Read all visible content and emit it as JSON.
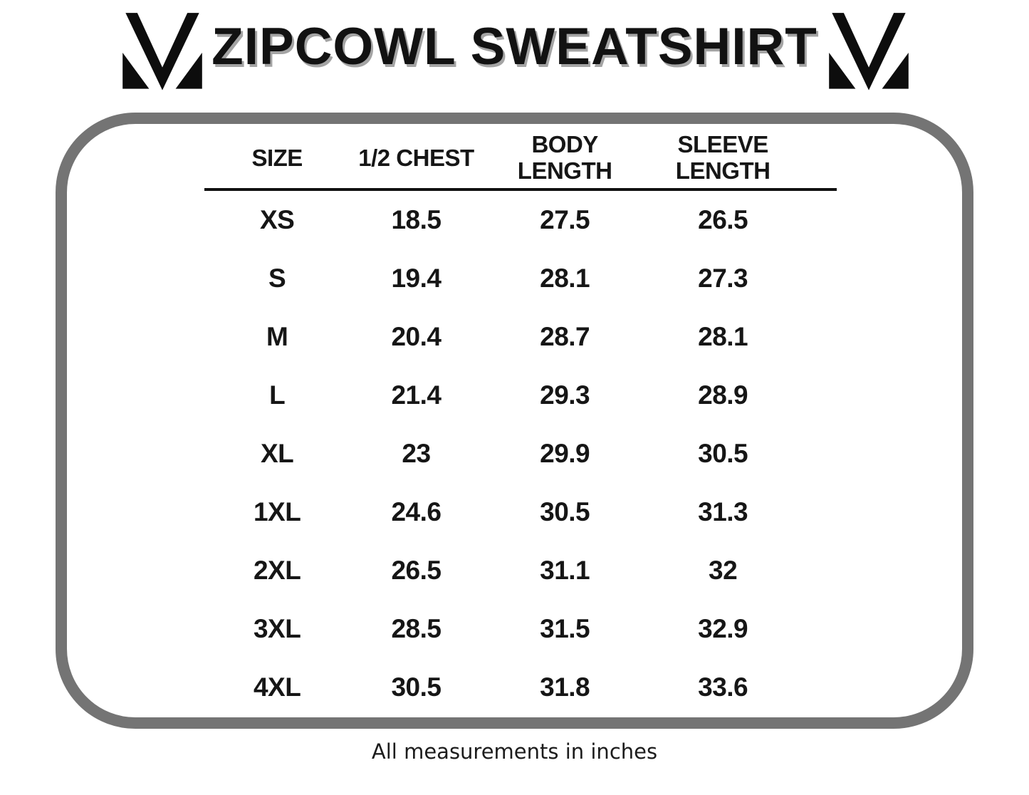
{
  "page": {
    "title": "ZIPCOWL SWEATSHIRT",
    "footer_note": "All measurements in inches"
  },
  "logos": {
    "left": "m-monogram-logo",
    "right": "m-monogram-logo"
  },
  "table": {
    "headers": [
      "SIZE",
      "1/2 CHEST",
      "BODY\nLENGTH",
      "SLEEVE\nLENGTH"
    ],
    "rows": [
      {
        "size": "XS",
        "values": [
          "18.5",
          "27.5",
          "26.5"
        ]
      },
      {
        "size": "S",
        "values": [
          "19.4",
          "28.1",
          "27.3"
        ]
      },
      {
        "size": "M",
        "values": [
          "20.4",
          "28.7",
          "28.1"
        ]
      },
      {
        "size": "L",
        "values": [
          "21.4",
          "29.3",
          "28.9"
        ]
      },
      {
        "size": "XL",
        "values": [
          "23",
          "29.9",
          "30.5"
        ]
      },
      {
        "size": "1XL",
        "values": [
          "24.6",
          "30.5",
          "31.3"
        ]
      },
      {
        "size": "2XL",
        "values": [
          "26.5",
          "31.1",
          "32"
        ]
      },
      {
        "size": "3XL",
        "values": [
          "28.5",
          "31.5",
          "32.9"
        ]
      },
      {
        "size": "4XL",
        "values": [
          "30.5",
          "31.8",
          "33.6"
        ]
      }
    ]
  },
  "colors": {
    "text": "#161616",
    "panel_border": "#747474",
    "title_shadow": "#a4a4a4",
    "divider": "#111111",
    "background": "#ffffff"
  },
  "chart_data": {
    "type": "table",
    "title": "ZIPCOWL SWEATSHIRT",
    "columns": [
      "SIZE",
      "1/2 CHEST",
      "BODY LENGTH",
      "SLEEVE LENGTH"
    ],
    "rows": [
      [
        "XS",
        18.5,
        27.5,
        26.5
      ],
      [
        "S",
        19.4,
        28.1,
        27.3
      ],
      [
        "M",
        20.4,
        28.7,
        28.1
      ],
      [
        "L",
        21.4,
        29.3,
        28.9
      ],
      [
        "XL",
        23,
        29.9,
        30.5
      ],
      [
        "1XL",
        24.6,
        30.5,
        31.3
      ],
      [
        "2XL",
        26.5,
        31.1,
        32
      ],
      [
        "3XL",
        28.5,
        31.5,
        32.9
      ],
      [
        "4XL",
        30.5,
        31.8,
        33.6
      ]
    ],
    "note": "All measurements in inches",
    "units": "inches"
  }
}
